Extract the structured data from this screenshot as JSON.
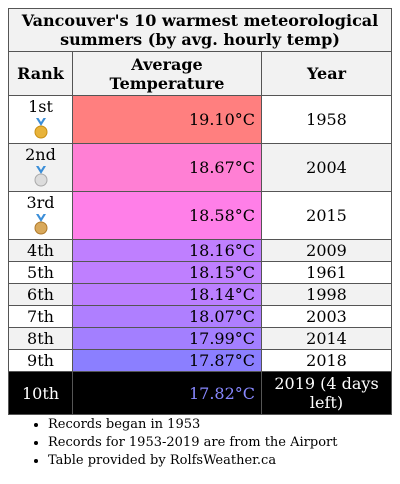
{
  "title": "Vancouver's 10 warmest meteorological summers (by avg. hourly temp)",
  "headers": {
    "rank": "Rank",
    "temp": "Average Temperature",
    "year": "Year"
  },
  "rows": [
    {
      "rank": "1st",
      "temp": "19.10°C",
      "year": "1958",
      "color": "#ff7f7f",
      "medal": "gold"
    },
    {
      "rank": "2nd",
      "temp": "18.67°C",
      "year": "2004",
      "color": "#ff7fd4",
      "medal": "silver"
    },
    {
      "rank": "3rd",
      "temp": "18.58°C",
      "year": "2015",
      "color": "#ff7fe8",
      "medal": "bronze"
    },
    {
      "rank": "4th",
      "temp": "18.16°C",
      "year": "2009",
      "color": "#bf7fff"
    },
    {
      "rank": "5th",
      "temp": "18.15°C",
      "year": "1961",
      "color": "#bf7fff"
    },
    {
      "rank": "6th",
      "temp": "18.14°C",
      "year": "1998",
      "color": "#bb7fff"
    },
    {
      "rank": "7th",
      "temp": "18.07°C",
      "year": "2003",
      "color": "#af7fff"
    },
    {
      "rank": "8th",
      "temp": "17.99°C",
      "year": "2014",
      "color": "#a37fff"
    },
    {
      "rank": "9th",
      "temp": "17.87°C",
      "year": "2018",
      "color": "#8b7fff"
    },
    {
      "rank": "10th",
      "temp": "17.82°C",
      "year": "2019 (4 days left)",
      "color": "#000000"
    }
  ],
  "notes": [
    "Records began in 1953",
    "Records for 1953-2019 are from the Airport",
    "Table provided by RolfsWeather.ca"
  ],
  "colors": {
    "header_bg": "#f2f2f2",
    "last_row_bg": "#000000",
    "last_row_temp": "#8888ff"
  }
}
